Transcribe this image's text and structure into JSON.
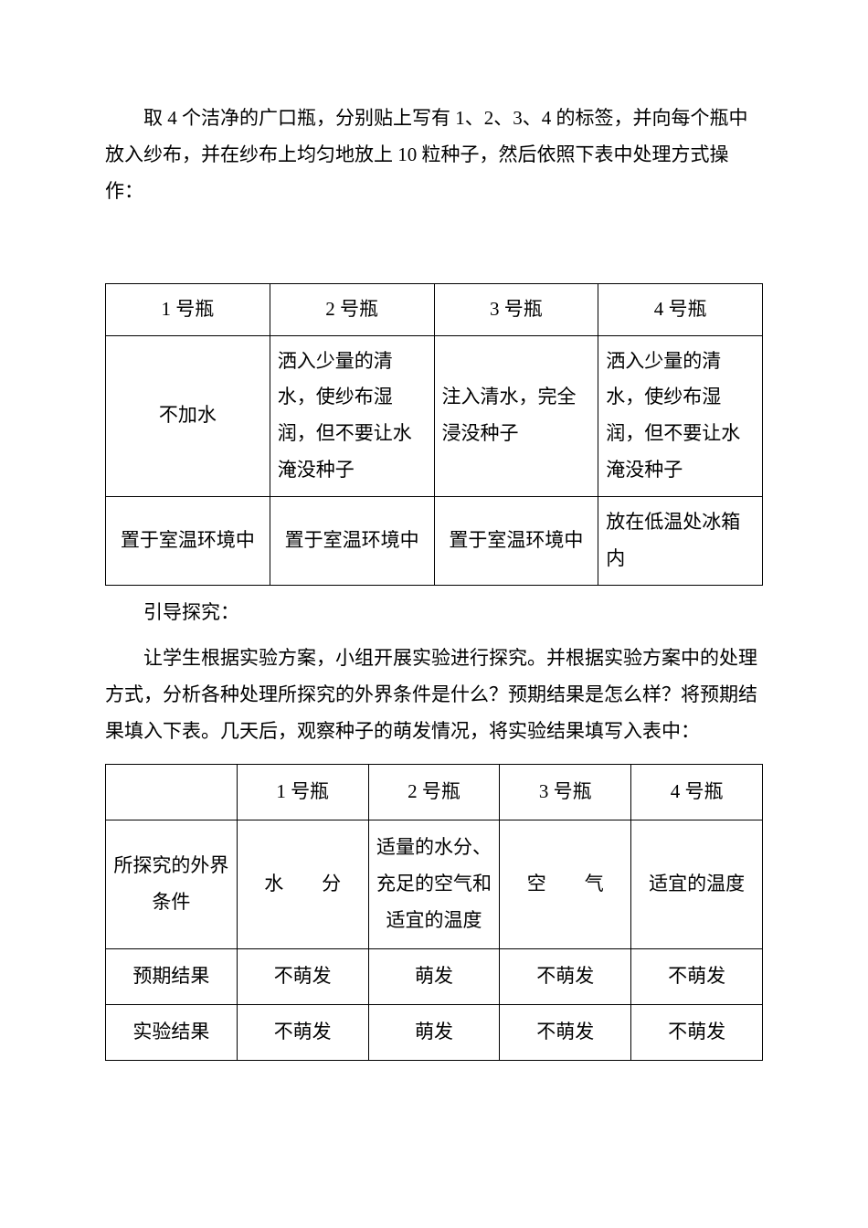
{
  "paragraph1": "取 4 个洁净的广口瓶，分别贴上写有 1、2、3、4 的标签，并向每个瓶中放入纱布，并在纱布上均匀地放上 10 粒种子，然后依照下表中处理方式操作：",
  "table1": {
    "headers": [
      "1 号瓶",
      "2 号瓶",
      "3 号瓶",
      "4 号瓶"
    ],
    "row1": [
      "不加水",
      "洒入少量的清水，使纱布湿润，但不要让水淹没种子",
      "注入清水，完全浸没种子",
      "洒入少量的清水，使纱布湿润，但不要让水淹没种子"
    ],
    "row2": [
      "置于室温环境中",
      "置于室温环境中",
      "置于室温环境中",
      "放在低温处冰箱内"
    ]
  },
  "paragraph2": "引导探究：",
  "paragraph3": "让学生根据实验方案，小组开展实验进行探究。并根据实验方案中的处理方式，分析各种处理所探究的外界条件是什么？预期结果是怎么样？将预期结果填入下表。几天后，观察种子的萌发情况，将实验结果填写入表中：",
  "table2": {
    "headers": [
      "",
      "1 号瓶",
      "2 号瓶",
      "3 号瓶",
      "4 号瓶"
    ],
    "row1_label": "所探究的外界条件",
    "row1": [
      "水　　分",
      "适量的水分、充足的空气和适宜的温度",
      "空　　气",
      "适宜的温度"
    ],
    "row2_label": "预期结果",
    "row2": [
      "不萌发",
      "萌发",
      "不萌发",
      "不萌发"
    ],
    "row3_label": "实验结果",
    "row3": [
      "不萌发",
      "萌发",
      "不萌发",
      "不萌发"
    ]
  },
  "colors": {
    "text": "#000000",
    "background": "#ffffff",
    "border": "#000000"
  },
  "typography": {
    "font_family": "SimSun",
    "body_fontsize": 21,
    "line_height": 1.9
  }
}
